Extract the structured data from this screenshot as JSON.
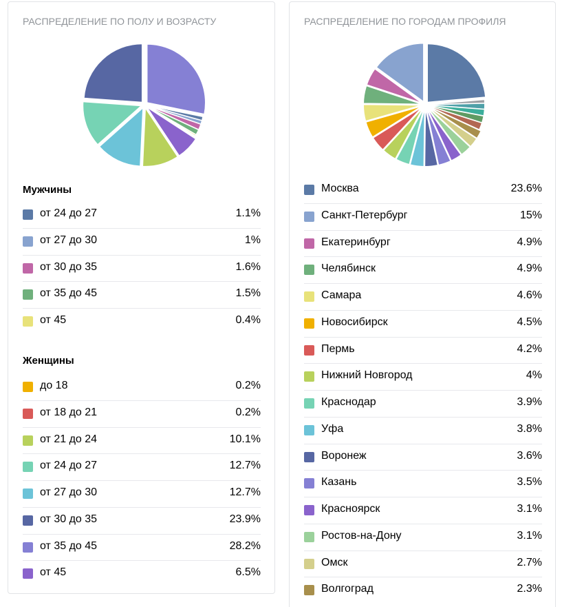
{
  "chart_data": [
    {
      "type": "pie",
      "title": "РАСПРЕДЕЛЕНИЕ ПО ПОЛУ И ВОЗРАСТУ",
      "groups": [
        {
          "title": "Мужчины",
          "items": [
            {
              "label": "от 24 до 27",
              "value": 1.1,
              "display": "1.1%",
              "color": "#5b7aa6"
            },
            {
              "label": "от 27 до 30",
              "value": 1.0,
              "display": "1%",
              "color": "#88a3cf"
            },
            {
              "label": "от 30 до 35",
              "value": 1.6,
              "display": "1.6%",
              "color": "#c067a7"
            },
            {
              "label": "от 35 до 45",
              "value": 1.5,
              "display": "1.5%",
              "color": "#6fb07c"
            },
            {
              "label": "от 45",
              "value": 0.4,
              "display": "0.4%",
              "color": "#e8e27a"
            }
          ]
        },
        {
          "title": "Женщины",
          "items": [
            {
              "label": "до 18",
              "value": 0.2,
              "display": "0.2%",
              "color": "#f0b000"
            },
            {
              "label": "от 18 до 21",
              "value": 0.2,
              "display": "0.2%",
              "color": "#d95a58"
            },
            {
              "label": "от 21 до 24",
              "value": 10.1,
              "display": "10.1%",
              "color": "#b8d15c"
            },
            {
              "label": "от 24 до 27",
              "value": 12.7,
              "display": "12.7%",
              "color": "#76d3b4"
            },
            {
              "label": "от 27 до 30",
              "value": 12.7,
              "display": "12.7%",
              "color": "#6cc3d8"
            },
            {
              "label": "от 30 до 35",
              "value": 23.9,
              "display": "23.9%",
              "color": "#5767a3"
            },
            {
              "label": "от 35 до 45",
              "value": 28.2,
              "display": "28.2%",
              "color": "#8580d4"
            },
            {
              "label": "от 45",
              "value": 6.5,
              "display": "6.5%",
              "color": "#8a63cc"
            }
          ]
        }
      ]
    },
    {
      "type": "pie",
      "title": "РАСПРЕДЕЛЕНИЕ ПО ГОРОДАМ ПРОФИЛЯ",
      "items": [
        {
          "label": "Москва",
          "value": 23.6,
          "display": "23.6%",
          "color": "#5b7aa6"
        },
        {
          "label": "Санкт-Петербург",
          "value": 15,
          "display": "15%",
          "color": "#88a3cf"
        },
        {
          "label": "Екатеринбург",
          "value": 4.9,
          "display": "4.9%",
          "color": "#c067a7"
        },
        {
          "label": "Челябинск",
          "value": 4.9,
          "display": "4.9%",
          "color": "#6fb07c"
        },
        {
          "label": "Самара",
          "value": 4.6,
          "display": "4.6%",
          "color": "#e8e27a"
        },
        {
          "label": "Новосибирск",
          "value": 4.5,
          "display": "4.5%",
          "color": "#f0b000"
        },
        {
          "label": "Пермь",
          "value": 4.2,
          "display": "4.2%",
          "color": "#d95a58"
        },
        {
          "label": "Нижний Новгород",
          "value": 4,
          "display": "4%",
          "color": "#b8d15c"
        },
        {
          "label": "Краснодар",
          "value": 3.9,
          "display": "3.9%",
          "color": "#76d3b4"
        },
        {
          "label": "Уфа",
          "value": 3.8,
          "display": "3.8%",
          "color": "#6cc3d8"
        },
        {
          "label": "Воронеж",
          "value": 3.6,
          "display": "3.6%",
          "color": "#5767a3"
        },
        {
          "label": "Казань",
          "value": 3.5,
          "display": "3.5%",
          "color": "#8580d4"
        },
        {
          "label": "Красноярск",
          "value": 3.1,
          "display": "3.1%",
          "color": "#8a63cc"
        },
        {
          "label": "Ростов-на-Дону",
          "value": 3.1,
          "display": "3.1%",
          "color": "#9bd19b"
        },
        {
          "label": "Омск",
          "value": 2.7,
          "display": "2.7%",
          "color": "#d4cf8c"
        },
        {
          "label": "Волгоград",
          "value": 2.3,
          "display": "2.3%",
          "color": "#a88f4c"
        }
      ],
      "extra_slices": [
        {
          "value": 2.0,
          "color": "#b26752"
        },
        {
          "value": 1.9,
          "color": "#5f9b63"
        },
        {
          "value": 1.8,
          "color": "#3cae9b"
        },
        {
          "value": 1.6,
          "color": "#4ea0a8"
        },
        {
          "value": 1.0,
          "color": "#9b9fa3"
        }
      ]
    }
  ]
}
